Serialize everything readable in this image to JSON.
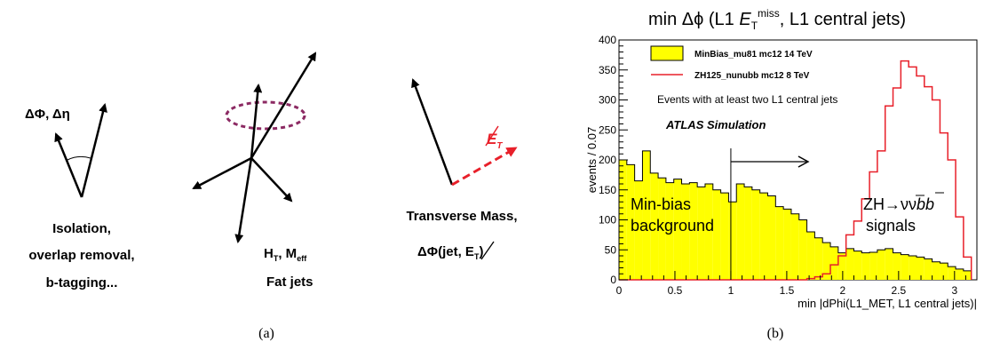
{
  "panel_a": {
    "caption": "(a)",
    "delta_phi_eta": "ΔΦ, Δη",
    "isolation_lines": [
      "Isolation,",
      "overlap removal,",
      "b-tagging..."
    ],
    "ht_meff": "H_T, M_eff",
    "fat_jets": "Fat jets",
    "et_label": "E_T",
    "transverse_mass": "Transverse Mass,",
    "delta_phi_jet_et": "ΔΦ(jet, E_T)"
  },
  "panel_b": {
    "caption": "(b)",
    "title": "min Δϕ (L1 E_T^miss, L1 central jets)",
    "annotation_events": "Events with at least two L1 central jets",
    "annotation_atlas": "ATLAS Simulation",
    "minbias_label": [
      "Min-bias",
      "background"
    ],
    "signal_label": [
      "ZH→ννbb",
      "signals"
    ]
  },
  "colors": {
    "minbias_fill": "#ffff00",
    "signal_line": "#e8202a",
    "dashed_vector": "#e8202a",
    "ellipse": "#8c2a63"
  },
  "chart_data": {
    "type": "histogram",
    "title": "min Δϕ (L1 E_T^miss, L1 central jets)",
    "xlabel": "min |dPhi(L1_MET, L1 central jets)|",
    "ylabel": "events / 0.07",
    "xlim": [
      0,
      3.2
    ],
    "ylim": [
      0,
      400
    ],
    "x_ticks": [
      0,
      0.5,
      1,
      1.5,
      2,
      2.5,
      3
    ],
    "y_ticks": [
      0,
      50,
      100,
      150,
      200,
      250,
      300,
      350,
      400
    ],
    "bin_width": 0.07,
    "cut_value": 1.0,
    "series": [
      {
        "name": "MinBias_mu81 mc12 14 TeV",
        "style": "filled",
        "values": [
          200,
          192,
          165,
          215,
          178,
          170,
          162,
          168,
          160,
          162,
          155,
          160,
          150,
          145,
          130,
          160,
          155,
          150,
          145,
          140,
          122,
          118,
          110,
          100,
          80,
          70,
          62,
          55,
          45,
          52,
          48,
          45,
          46,
          50,
          52,
          45,
          42,
          40,
          38,
          35,
          30,
          28,
          22,
          18,
          15
        ]
      },
      {
        "name": "ZH125_nunubb mc12 8 TeV",
        "style": "line",
        "values": [
          0,
          0,
          0,
          0,
          0,
          0,
          0,
          0,
          0,
          0,
          0,
          0,
          0,
          0,
          0,
          0,
          0,
          0,
          0,
          0,
          0,
          0,
          0,
          0,
          2,
          5,
          10,
          25,
          40,
          75,
          98,
          135,
          180,
          215,
          290,
          320,
          365,
          355,
          340,
          322,
          300,
          245,
          200,
          105,
          38
        ]
      }
    ]
  }
}
